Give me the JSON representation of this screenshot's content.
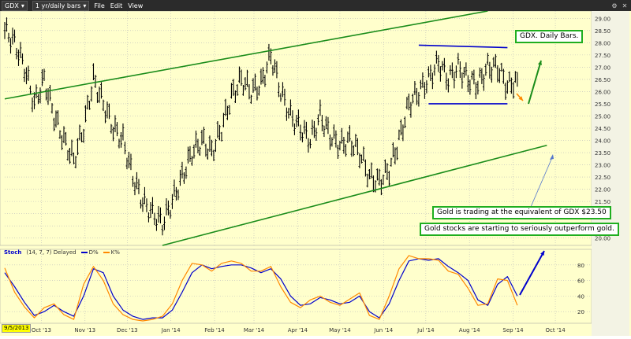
{
  "toolbar": {
    "symbol": "GDX",
    "period": "1 yr/daily bars",
    "menu_file": "File",
    "menu_edit": "Edit",
    "menu_view": "View"
  },
  "stoch": {
    "label": "Stoch",
    "params": "(14, 7, 7) Delayed",
    "d_label": "D%",
    "k_label": "K%"
  },
  "date_badge": "9/5/2013",
  "annotations": {
    "title": "GDX. Daily Bars.",
    "note1": "Gold is trading at the equivalent of GDX $23.50",
    "note2": "Gold stocks are starting to seriously outperform gold."
  },
  "colors": {
    "background": "#ffffcc",
    "bars": "#000000",
    "channel": "#1a8c1a",
    "range": "#0000cc",
    "arrow_up": "#1a8c1a",
    "arrow_down": "#ff8800",
    "stoch_d": "#0000cc",
    "stoch_k": "#ff8800",
    "callout_border": "#1fae1f"
  },
  "chart_data": [
    {
      "type": "ohlc",
      "series_label": "GDX",
      "x_ticks": [
        "Oct '13",
        "Nov '13",
        "Dec '13",
        "Jan '14",
        "Feb '14",
        "Mar '14",
        "Apr '14",
        "May '14",
        "Jun '14",
        "Jul '14",
        "Aug '14",
        "Sep '14",
        "Oct '14"
      ],
      "y_ticks": [
        20.0,
        20.5,
        21.0,
        21.5,
        22.0,
        22.5,
        23.0,
        23.5,
        24.0,
        24.5,
        25.0,
        25.5,
        26.0,
        26.5,
        27.0,
        27.5,
        28.0,
        28.5,
        29.0
      ],
      "ylim": [
        19.7,
        29.3
      ],
      "x": [
        "9/5/13",
        "9/12/13",
        "9/19/13",
        "9/26/13",
        "10/3/13",
        "10/10/13",
        "10/17/13",
        "10/24/13",
        "10/31/13",
        "11/7/13",
        "11/14/13",
        "11/21/13",
        "11/28/13",
        "12/5/13",
        "12/12/13",
        "12/19/13",
        "12/26/13",
        "1/2/14",
        "1/9/14",
        "1/16/14",
        "1/23/14",
        "1/30/14",
        "2/6/14",
        "2/13/14",
        "2/20/14",
        "2/27/14",
        "3/6/14",
        "3/13/14",
        "3/20/14",
        "3/27/14",
        "4/3/14",
        "4/10/14",
        "4/17/14",
        "4/24/14",
        "5/1/14",
        "5/8/14",
        "5/15/14",
        "5/22/14",
        "5/29/14",
        "6/5/14",
        "6/12/14",
        "6/19/14",
        "6/26/14",
        "7/3/14",
        "7/10/14",
        "7/17/14",
        "7/24/14",
        "7/31/14",
        "8/7/14",
        "8/14/14",
        "8/21/14",
        "8/28/14",
        "9/4/14"
      ],
      "values": [
        28.5,
        28.0,
        27.0,
        25.5,
        26.5,
        25.0,
        24.0,
        23.2,
        24.5,
        26.5,
        25.5,
        24.5,
        24.0,
        22.5,
        21.5,
        21.0,
        20.6,
        21.5,
        22.5,
        23.5,
        24.0,
        23.5,
        24.5,
        25.8,
        26.5,
        26.0,
        26.3,
        27.5,
        26.0,
        25.0,
        24.5,
        24.0,
        25.0,
        24.2,
        23.8,
        24.0,
        23.5,
        22.5,
        22.3,
        22.8,
        24.0,
        25.5,
        26.0,
        26.5,
        27.2,
        26.5,
        27.0,
        26.5,
        26.3,
        27.0,
        27.0,
        26.2,
        26.5
      ],
      "trendlines": [
        {
          "name": "upper channel",
          "from": [
            "9/5/13",
            25.7
          ],
          "to": [
            "8/14/14",
            29.3
          ]
        },
        {
          "name": "lower channel",
          "from": [
            "12/26/13",
            19.7
          ],
          "to": [
            "9/25/14",
            23.8
          ]
        },
        {
          "name": "range top",
          "from": [
            "6/26/14",
            27.9
          ],
          "to": [
            "8/28/14",
            27.8
          ]
        },
        {
          "name": "range bottom",
          "from": [
            "7/3/14",
            25.5
          ],
          "to": [
            "8/28/14",
            25.5
          ]
        }
      ]
    },
    {
      "type": "line",
      "series": [
        {
          "name": "D%",
          "values": [
            70,
            52,
            32,
            15,
            20,
            28,
            20,
            14,
            40,
            75,
            70,
            40,
            22,
            14,
            10,
            12,
            12,
            22,
            45,
            70,
            80,
            75,
            78,
            80,
            80,
            76,
            70,
            75,
            62,
            40,
            28,
            30,
            38,
            35,
            30,
            32,
            40,
            20,
            12,
            30,
            60,
            85,
            88,
            86,
            88,
            78,
            70,
            60,
            35,
            28,
            55,
            65,
            40
          ]
        },
        {
          "name": "K%",
          "values": [
            76,
            45,
            26,
            12,
            25,
            30,
            16,
            10,
            55,
            78,
            60,
            30,
            16,
            10,
            8,
            10,
            14,
            30,
            60,
            82,
            80,
            72,
            82,
            85,
            82,
            72,
            72,
            78,
            52,
            32,
            25,
            35,
            40,
            32,
            28,
            36,
            44,
            15,
            10,
            40,
            75,
            92,
            88,
            88,
            86,
            72,
            68,
            50,
            28,
            30,
            62,
            60,
            28
          ]
        }
      ],
      "y_ticks": [
        20,
        40,
        60,
        80
      ],
      "ylim": [
        5,
        100
      ]
    }
  ]
}
